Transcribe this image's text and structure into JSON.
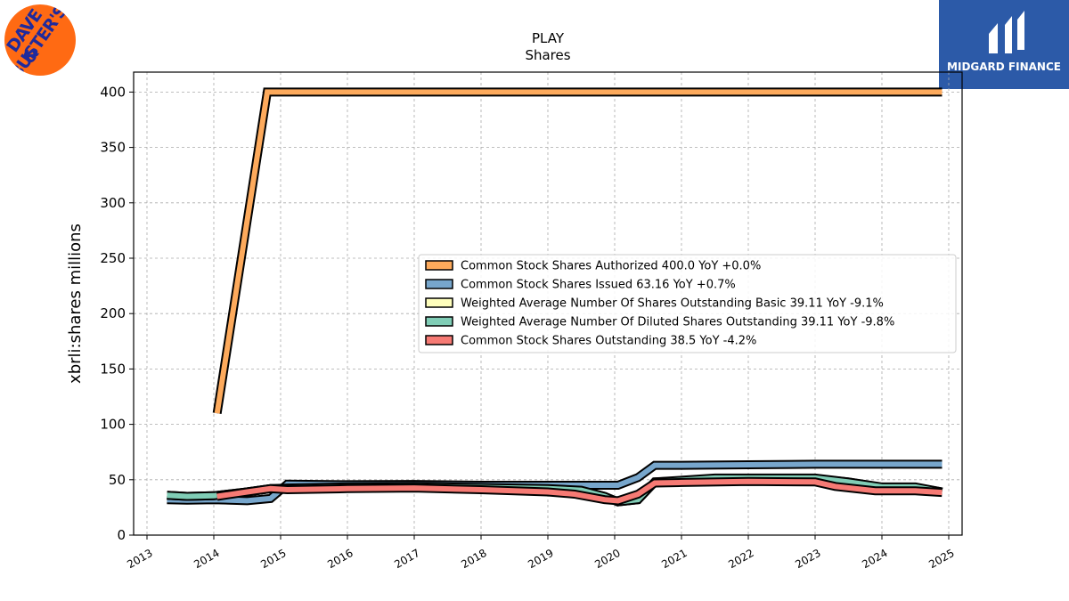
{
  "logos": {
    "left": {
      "line1": "DAVE &",
      "line2": "BUSTER'S"
    },
    "right": {
      "text": "MIDGARD FINANCE"
    }
  },
  "colors": {
    "authorized": "#fdaa5c",
    "issued": "#77a6cc",
    "basic": "#fefebc",
    "diluted": "#80cdb6",
    "outstanding": "#f67a74",
    "logo_left_bg": "#ff6a13",
    "logo_right_bg": "#2c5aa8"
  },
  "chart_data": {
    "type": "line",
    "title": "PLAY",
    "subtitle": "Shares",
    "xlabel": "",
    "ylabel": "xbrli:shares millions",
    "xlim": [
      2012.8,
      2025.2
    ],
    "ylim": [
      0,
      418
    ],
    "x_ticks": [
      2013,
      2014,
      2015,
      2016,
      2017,
      2018,
      2019,
      2020,
      2021,
      2022,
      2023,
      2024,
      2025
    ],
    "y_ticks": [
      0,
      50,
      100,
      150,
      200,
      250,
      300,
      350,
      400
    ],
    "grid": true,
    "legend_position": "center-right",
    "series": [
      {
        "name": "Common Stock Shares Authorized  400.0 YoY +0.0%",
        "color_key": "authorized",
        "points": [
          [
            2014.05,
            110
          ],
          [
            2014.8,
            400
          ],
          [
            2024.9,
            400
          ]
        ]
      },
      {
        "name": "Common Stock Shares Issued  63.16 YoY +0.7%",
        "color_key": "issued",
        "points": [
          [
            2013.3,
            32
          ],
          [
            2013.6,
            31.5
          ],
          [
            2014.0,
            32
          ],
          [
            2014.5,
            31
          ],
          [
            2014.85,
            33
          ],
          [
            2015.1,
            46
          ],
          [
            2016.0,
            45.5
          ],
          [
            2017.0,
            45.7
          ],
          [
            2018.0,
            45
          ],
          [
            2019.0,
            45
          ],
          [
            2019.5,
            45
          ],
          [
            2020.05,
            45
          ],
          [
            2020.35,
            52
          ],
          [
            2020.6,
            63
          ],
          [
            2021.0,
            63
          ],
          [
            2022.0,
            63.5
          ],
          [
            2023.0,
            64
          ],
          [
            2024.0,
            64
          ],
          [
            2024.9,
            64
          ]
        ]
      },
      {
        "name": "Weighted Average Number Of Shares Outstanding Basic  39.11 YoY -9.1%",
        "color_key": "basic",
        "points": [
          [
            2013.3,
            36
          ],
          [
            2013.6,
            35
          ],
          [
            2014.0,
            35.5
          ],
          [
            2014.5,
            39
          ],
          [
            2014.85,
            42
          ],
          [
            2015.1,
            42
          ],
          [
            2016.0,
            43
          ],
          [
            2017.0,
            43.5
          ],
          [
            2018.0,
            42.5
          ],
          [
            2019.0,
            41.5
          ],
          [
            2019.5,
            40
          ],
          [
            2019.85,
            35
          ],
          [
            2020.05,
            30
          ],
          [
            2020.35,
            32
          ],
          [
            2020.6,
            48
          ],
          [
            2021.0,
            49
          ],
          [
            2021.5,
            51
          ],
          [
            2022.0,
            51
          ],
          [
            2023.0,
            51
          ],
          [
            2023.5,
            48
          ],
          [
            2024.0,
            43
          ],
          [
            2024.5,
            43
          ],
          [
            2024.9,
            39
          ]
        ]
      },
      {
        "name": "Weighted Average Number Of Diluted Shares Outstanding  39.11 YoY -9.8%",
        "color_key": "diluted",
        "points": [
          [
            2013.3,
            36
          ],
          [
            2013.6,
            35
          ],
          [
            2014.0,
            35.5
          ],
          [
            2014.5,
            39
          ],
          [
            2014.85,
            42
          ],
          [
            2015.1,
            42.5
          ],
          [
            2016.0,
            43.5
          ],
          [
            2017.0,
            44
          ],
          [
            2018.0,
            43
          ],
          [
            2019.0,
            42
          ],
          [
            2019.5,
            40.5
          ],
          [
            2019.85,
            35
          ],
          [
            2020.05,
            30
          ],
          [
            2020.35,
            32
          ],
          [
            2020.6,
            48
          ],
          [
            2021.0,
            49.5
          ],
          [
            2021.5,
            51.5
          ],
          [
            2022.0,
            51.5
          ],
          [
            2023.0,
            51.5
          ],
          [
            2023.5,
            48
          ],
          [
            2024.0,
            43.5
          ],
          [
            2024.5,
            43.5
          ],
          [
            2024.9,
            39
          ]
        ]
      },
      {
        "name": "Common Stock Shares Outstanding  38.5 YoY -4.2%",
        "color_key": "outstanding",
        "points": [
          [
            2014.05,
            35
          ],
          [
            2014.5,
            39
          ],
          [
            2014.85,
            42
          ],
          [
            2015.1,
            41
          ],
          [
            2016.0,
            42
          ],
          [
            2017.0,
            42.5
          ],
          [
            2018.0,
            41
          ],
          [
            2019.0,
            39
          ],
          [
            2019.4,
            37
          ],
          [
            2019.85,
            32
          ],
          [
            2020.05,
            31
          ],
          [
            2020.35,
            37
          ],
          [
            2020.6,
            47
          ],
          [
            2021.0,
            47.5
          ],
          [
            2022.0,
            48.5
          ],
          [
            2023.0,
            48
          ],
          [
            2023.3,
            44
          ],
          [
            2023.9,
            40
          ],
          [
            2024.5,
            40
          ],
          [
            2024.9,
            38.5
          ]
        ]
      }
    ]
  }
}
